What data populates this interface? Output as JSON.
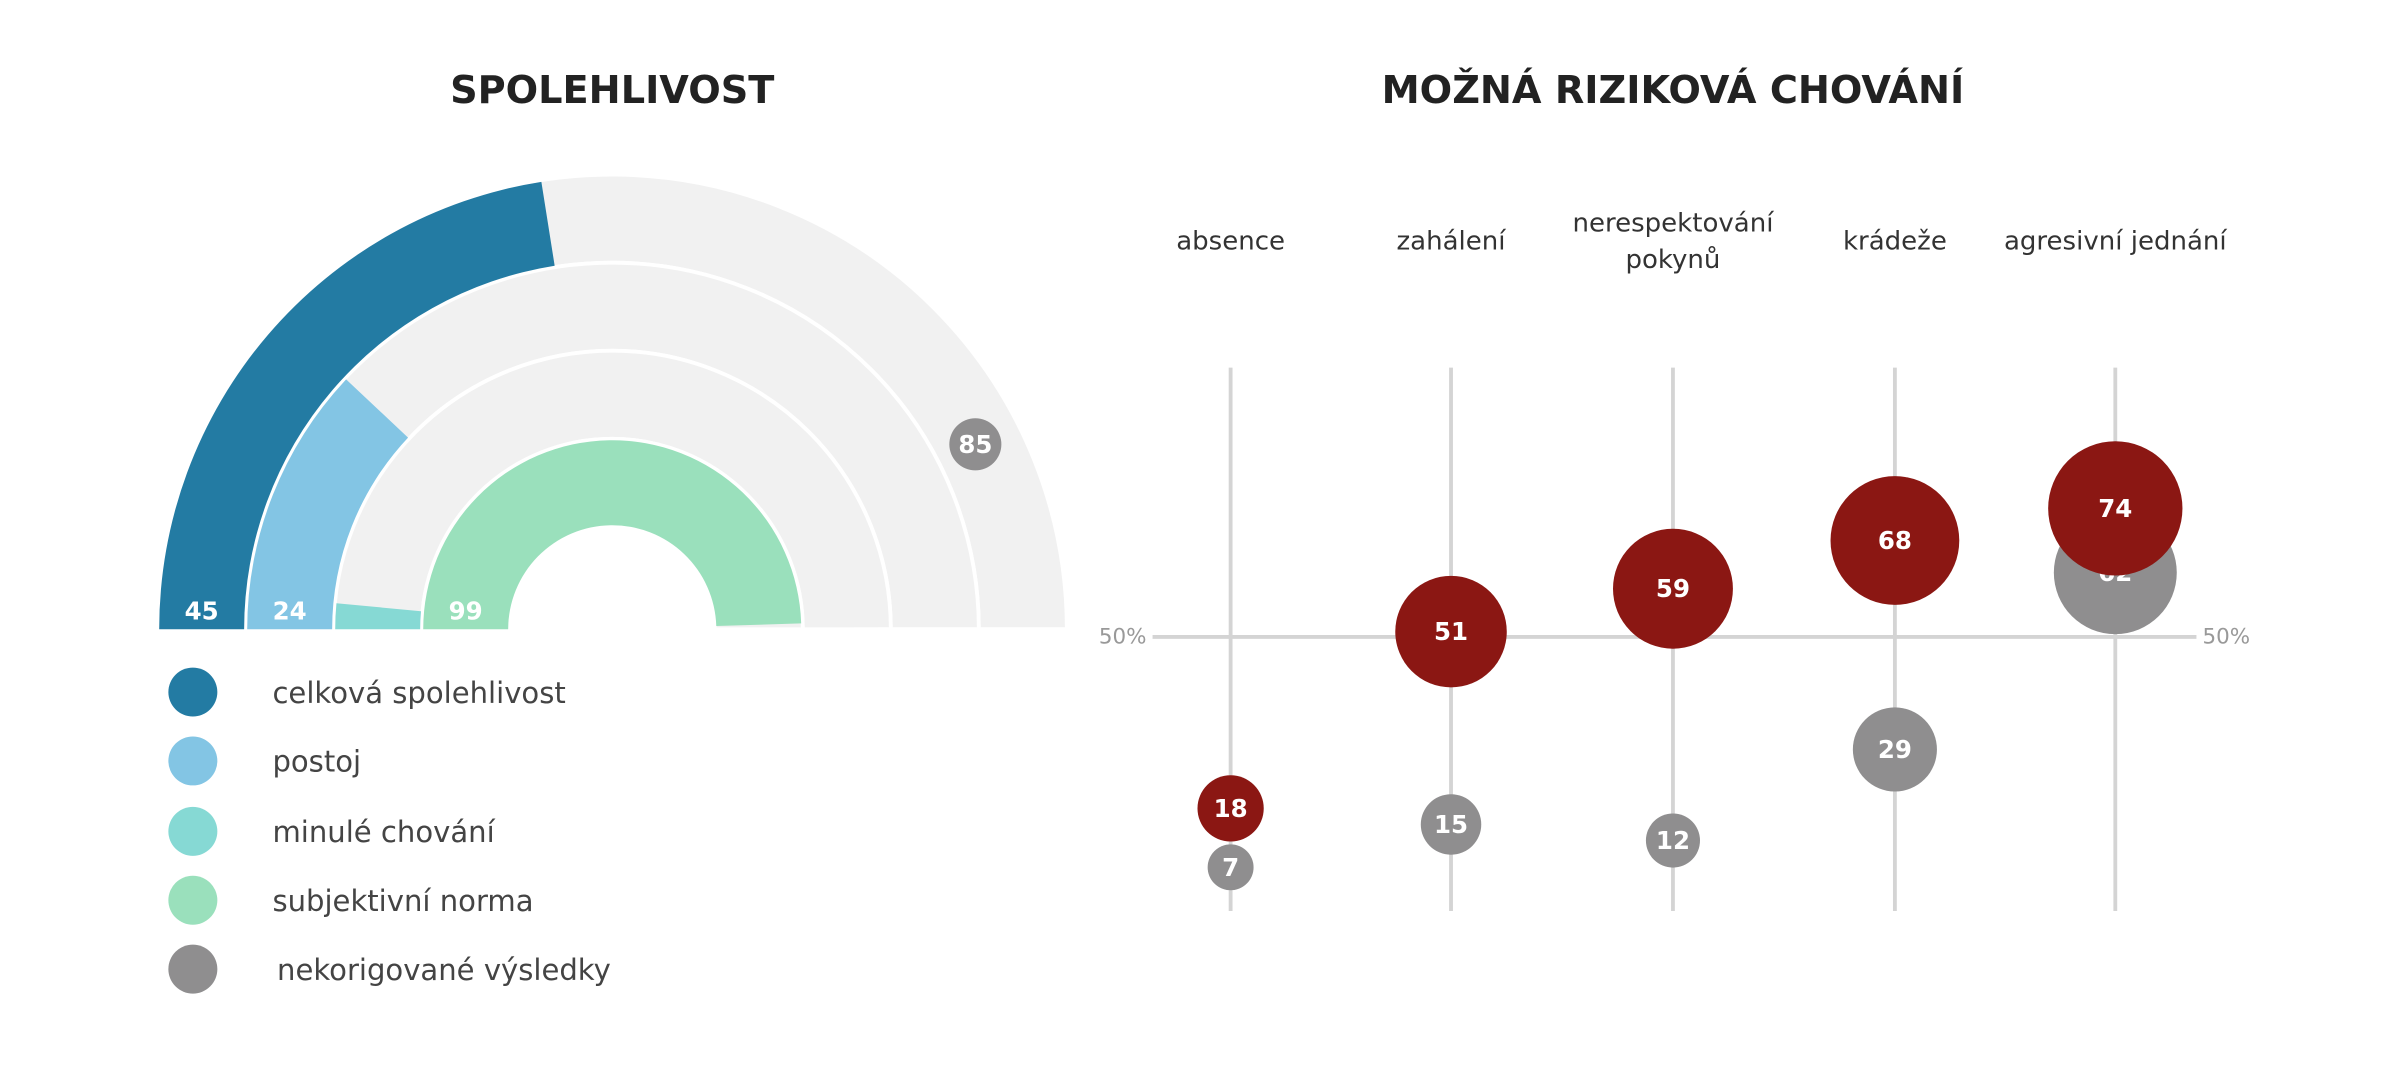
{
  "chart_data": [
    {
      "type": "radial-bar",
      "title": "SPOLEHLIVOST",
      "range": [
        0,
        100
      ],
      "series": [
        {
          "name": "celková spolehlivost",
          "value": 45,
          "color": "#237ba3",
          "label": "45"
        },
        {
          "name": "postoj",
          "value": 24,
          "color": "#83c5e4",
          "label": "24"
        },
        {
          "name": "minulé chování",
          "value": 3,
          "color": "#86d9d4",
          "label": ""
        },
        {
          "name": "subjektivní norma",
          "value": 99,
          "color": "#9ae0bc",
          "label": "99"
        }
      ],
      "uncorrected": {
        "name": "nekorigované výsledky",
        "value": 85,
        "label": "85",
        "color": "#8f8e8f",
        "ring": "celková spolehlivost"
      },
      "track_color": "#f1f1f1",
      "legend": "bottom-left"
    },
    {
      "type": "bubble",
      "title": "MOŽNÁ RIZIKOVÁ CHOVÁNÍ",
      "categories": [
        [
          "absence"
        ],
        [
          "zahálení"
        ],
        [
          "nerespektování",
          "pokynů"
        ],
        [
          "krádeže"
        ],
        [
          "agresivní jednání"
        ]
      ],
      "ylim": [
        0,
        100
      ],
      "reference_line": {
        "value": 50,
        "label_left": "50%",
        "label_right": "50%"
      },
      "series": [
        {
          "name": "nekorigované výsledky",
          "color": "#8f8e8f",
          "values": [
            7,
            15,
            12,
            29,
            62
          ]
        },
        {
          "color": "#8b1713",
          "values": [
            18,
            51,
            59,
            68,
            74
          ]
        }
      ]
    }
  ]
}
